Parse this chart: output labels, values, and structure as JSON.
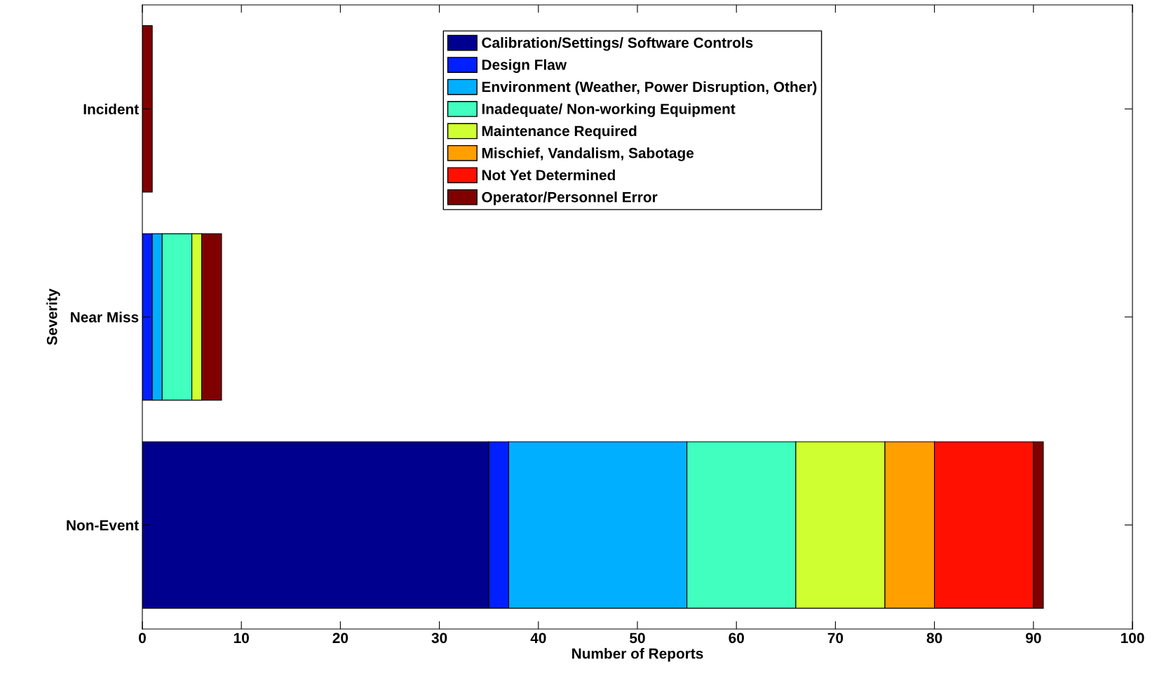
{
  "chart_data": {
    "type": "bar",
    "orientation": "horizontal",
    "stacked": true,
    "xlabel": "Number of Reports",
    "ylabel": "Severity",
    "categories": [
      "Incident",
      "Near Miss",
      "Non-Event"
    ],
    "series": [
      {
        "name": "Calibration/Settings/ Software Controls",
        "color": "#00008f",
        "values": [
          0,
          0,
          35
        ]
      },
      {
        "name": "Design Flaw",
        "color": "#0020ff",
        "values": [
          0,
          1,
          2
        ]
      },
      {
        "name": "Environment (Weather, Power Disruption, Other)",
        "color": "#00afff",
        "values": [
          0,
          1,
          18
        ]
      },
      {
        "name": "Inadequate/ Non-working Equipment",
        "color": "#40ffbf",
        "values": [
          0,
          3,
          11
        ]
      },
      {
        "name": "Maintenance Required",
        "color": "#cfff30",
        "values": [
          0,
          1,
          9
        ]
      },
      {
        "name": "Mischief, Vandalism, Sabotage",
        "color": "#ff9f00",
        "values": [
          0,
          0,
          5
        ]
      },
      {
        "name": "Not Yet Determined",
        "color": "#ff1000",
        "values": [
          0,
          0,
          10
        ]
      },
      {
        "name": "Operator/Personnel Error",
        "color": "#800000",
        "values": [
          1,
          2,
          1
        ]
      }
    ],
    "xlim": [
      0,
      100
    ],
    "xticks": [
      0,
      10,
      20,
      30,
      40,
      50,
      60,
      70,
      80,
      90,
      100
    ],
    "grid": false,
    "legend": "top"
  }
}
